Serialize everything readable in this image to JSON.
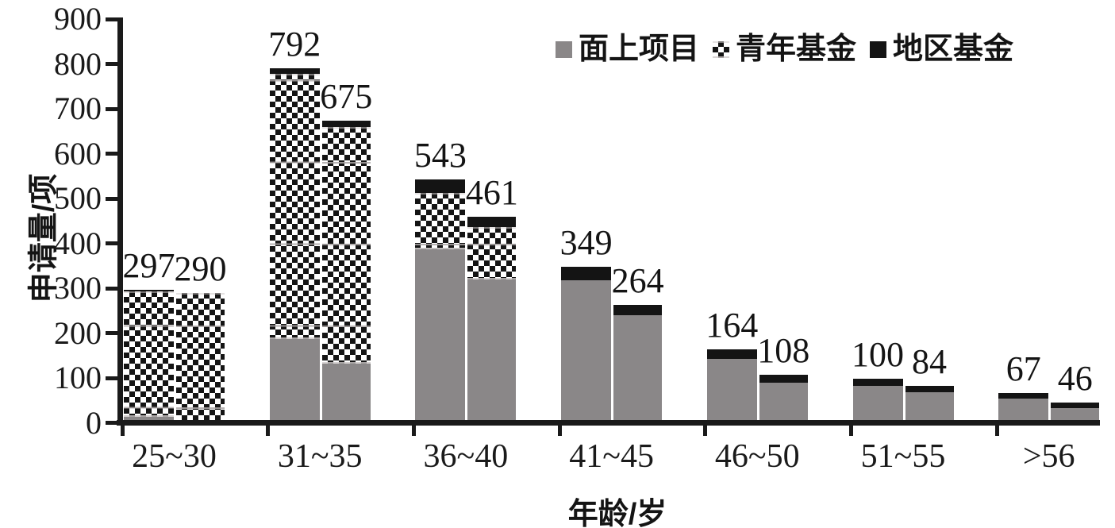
{
  "chart": {
    "y_axis": {
      "title": "申请量/项",
      "ticks": [
        0,
        100,
        200,
        300,
        400,
        500,
        600,
        700,
        800,
        900
      ],
      "max": 900
    },
    "x_axis": {
      "title": "年龄/岁",
      "categories": [
        "25~30",
        "31~35",
        "36~40",
        "41~45",
        "46~50",
        "51~55",
        ">56"
      ]
    },
    "legend": [
      {
        "id": "general-program",
        "label": "面上项目",
        "swatch": "solid-gray"
      },
      {
        "id": "youth-fund",
        "label": "青年基金",
        "swatch": "checkerboard"
      },
      {
        "id": "regional-fund",
        "label": "地区基金",
        "swatch": "solid-black"
      }
    ],
    "colors": {
      "gray": "#8a8788",
      "black": "#141414",
      "axis": "#1a1a1a"
    },
    "chart_data": {
      "type": "bar",
      "stacked": true,
      "bars_per_category": 2,
      "title": "",
      "xlabel": "年龄/岁",
      "ylabel": "申请量/项",
      "ylim": [
        0,
        900
      ],
      "grid": false,
      "legend_position": "top-right",
      "categories": [
        "25~30",
        "31~35",
        "36~40",
        "41~45",
        "46~50",
        "51~55",
        ">56"
      ],
      "series": [
        {
          "id": "general-program",
          "name": "面上项目",
          "fill": "solid-gray",
          "bar1_values": [
            15,
            188,
            388,
            318,
            143,
            83,
            55
          ],
          "bar2_values": [
            0,
            132,
            320,
            240,
            90,
            69,
            34
          ]
        },
        {
          "id": "youth-fund",
          "name": "青年基金",
          "fill": "checkerboard",
          "bar1_values": [
            278,
            590,
            125,
            0,
            0,
            0,
            0
          ],
          "bar2_values": [
            290,
            528,
            117,
            0,
            0,
            0,
            0
          ]
        },
        {
          "id": "regional-fund",
          "name": "地区基金",
          "fill": "solid-black",
          "bar1_values": [
            4,
            14,
            30,
            31,
            21,
            17,
            12
          ],
          "bar2_values": [
            0,
            15,
            24,
            24,
            18,
            15,
            12
          ]
        }
      ],
      "bar1_totals": [
        297,
        792,
        543,
        349,
        164,
        100,
        67
      ],
      "bar2_totals": [
        290,
        675,
        461,
        264,
        108,
        84,
        46
      ]
    }
  }
}
